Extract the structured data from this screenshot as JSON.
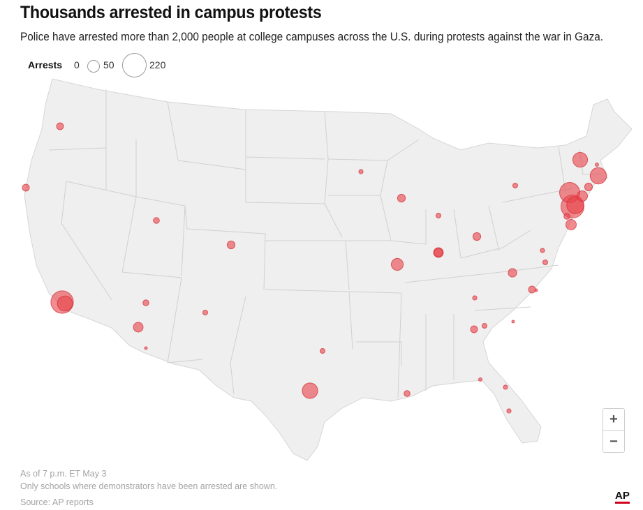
{
  "title": "Thousands arrested in campus protests",
  "subtitle": "Police have arrested more than 2,000 people at college campuses across the U.S. during protests against the war in Gaza.",
  "legend": {
    "label": "Arrests",
    "values": [
      "0",
      "50",
      "220"
    ]
  },
  "colors": {
    "marker_fill": "#e8454c",
    "marker_stroke": "#d22a33",
    "land": "#efefef",
    "borders": "#cfcfcf",
    "ap_accent": "#d0021b"
  },
  "zoom": {
    "in_label": "+",
    "out_label": "−"
  },
  "footer": {
    "as_of": "As of 7 p.m. ET May 3",
    "note": "Only schools where demonstrators have been arrested are shown.",
    "source": "Source: AP reports"
  },
  "logo": "AP",
  "map_data": {
    "region": "Contiguous United States",
    "scale_max": 220,
    "markers": [
      {
        "place": "Portland, OR",
        "arrests": 20
      },
      {
        "place": "Northern California",
        "arrests": 20
      },
      {
        "place": "Los Angeles, CA (UCLA)",
        "arrests": 210
      },
      {
        "place": "Los Angeles, CA (USC)",
        "arrests": 95
      },
      {
        "place": "Salt Lake City, UT",
        "arrests": 15
      },
      {
        "place": "Denver, CO",
        "arrests": 25
      },
      {
        "place": "Flagstaff, AZ",
        "arrests": 15
      },
      {
        "place": "Tempe, AZ",
        "arrests": 40
      },
      {
        "place": "Tucson, AZ",
        "arrests": 3
      },
      {
        "place": "Albuquerque, NM",
        "arrests": 10
      },
      {
        "place": "Dallas, TX",
        "arrests": 10
      },
      {
        "place": "Austin, TX",
        "arrests": 100
      },
      {
        "place": "Minneapolis, MN",
        "arrests": 8
      },
      {
        "place": "Madison, WI",
        "arrests": 25
      },
      {
        "place": "Chicago area, IL",
        "arrests": 10
      },
      {
        "place": "Champaign, IL",
        "arrests": 30
      },
      {
        "place": "St. Louis, MO",
        "arrests": 60
      },
      {
        "place": "Bloomington, IN",
        "arrests": 40
      },
      {
        "place": "Columbus, OH",
        "arrests": 25
      },
      {
        "place": "Buffalo, NY",
        "arrests": 10
      },
      {
        "place": "Charlottesville, VA",
        "arrests": 30
      },
      {
        "place": "Virginia (central)",
        "arrests": 8
      },
      {
        "place": "Richmond, VA",
        "arrests": 10
      },
      {
        "place": "Chapel Hill, NC",
        "arrests": 20
      },
      {
        "place": "North Carolina (coast)",
        "arrests": 2
      },
      {
        "place": "Knoxville, TN",
        "arrests": 8
      },
      {
        "place": "Atlanta, GA",
        "arrests": 20
      },
      {
        "place": "Athens, GA",
        "arrests": 10
      },
      {
        "place": "South Carolina",
        "arrests": 2
      },
      {
        "place": "New Orleans, LA",
        "arrests": 15
      },
      {
        "place": "Tallahassee, FL",
        "arrests": 5
      },
      {
        "place": "Gainesville, FL",
        "arrests": 8
      },
      {
        "place": "Tampa, FL",
        "arrests": 8
      },
      {
        "place": "Hanover, NH",
        "arrests": 90
      },
      {
        "place": "Boston, MA",
        "arrests": 110
      },
      {
        "place": "Boston area, MA",
        "arrests": 5
      },
      {
        "place": "Amherst, MA",
        "arrests": 25
      },
      {
        "place": "New Haven, CT",
        "arrests": 45
      },
      {
        "place": "New York, NY (Columbia)",
        "arrests": 220
      },
      {
        "place": "New York, NY (CCNY)",
        "arrests": 170
      },
      {
        "place": "New York, NY (NYU)",
        "arrests": 120
      },
      {
        "place": "New Jersey",
        "arrests": 15
      },
      {
        "place": "Philadelphia, PA",
        "arrests": 45
      }
    ]
  }
}
